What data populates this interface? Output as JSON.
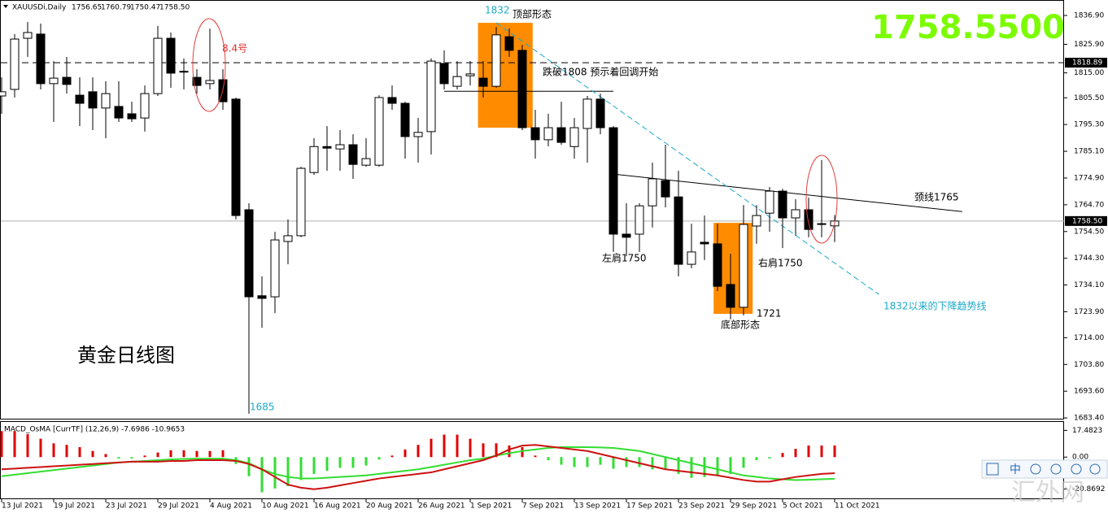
{
  "chart_data": {
    "type": "candlestick",
    "symbol": "XAUUSDi,Daily",
    "header_values": [
      "1756.65",
      "1760.79",
      "1750.47",
      "1758.50"
    ],
    "big_price": "1758.5500",
    "title": "黄金日线图",
    "categories": [
      "13 Jul 2021",
      null,
      null,
      null,
      "19 Jul 2021",
      null,
      null,
      null,
      "23 Jul 2021",
      null,
      null,
      null,
      "29 Jul 2021",
      null,
      null,
      null,
      "4 Aug 2021",
      null,
      null,
      null,
      "10 Aug 2021",
      null,
      null,
      null,
      "16 Aug 2021",
      null,
      null,
      null,
      "20 Aug 2021",
      null,
      null,
      null,
      "26 Aug 2021",
      null,
      null,
      null,
      "1 Sep 2021",
      null,
      null,
      null,
      "7 Sep 2021",
      null,
      null,
      null,
      "13 Sep 2021",
      null,
      null,
      null,
      "17 Sep 2021",
      null,
      null,
      null,
      "23 Sep 2021",
      null,
      null,
      null,
      "29 Sep 2021",
      null,
      null,
      null,
      "5 Oct 2021",
      null,
      null,
      null,
      "11 Oct 2021"
    ],
    "open": [
      1806.2,
      1808.7,
      1828.2,
      1829.8,
      1810.9,
      1813.3,
      1806.5,
      1807.8,
      1801.6,
      1802.2,
      1799.4,
      1797.8,
      1807.1,
      1828.2,
      1815.3,
      1813.3,
      1810.9,
      1812.4,
      1805.0,
      1762.8,
      1730.0,
      1729.6,
      1750.7,
      1752.9,
      1777.0,
      1786.9,
      1786.0,
      1787.6,
      1779.8,
      1779.8,
      1805.6,
      1803.4,
      1790.7,
      1792.6,
      1818.6,
      1809.9,
      1813.9,
      1813.0,
      1809.9,
      1828.8,
      1823.6,
      1794.1,
      1789.5,
      1794.1,
      1786.9,
      1793.8,
      1805.0,
      1794.1,
      1753.5,
      1753.5,
      1764.3,
      1773.9,
      1767.7,
      1742.0,
      1750.4,
      1749.8,
      1734.3,
      1725.6,
      1756.6,
      1761.5,
      1769.9,
      1759.7,
      1762.8,
      1757.2,
      1756.65
    ],
    "high": [
      1813.3,
      1829.8,
      1834.4,
      1833.8,
      1819.5,
      1821.1,
      1813.3,
      1813.3,
      1811.8,
      1811.8,
      1804.0,
      1810.2,
      1832.9,
      1830.4,
      1820.5,
      1816.4,
      1831.9,
      1816.4,
      1805.6,
      1765.3,
      1737.4,
      1754.4,
      1759.1,
      1779.2,
      1790.1,
      1794.7,
      1793.2,
      1791.6,
      1790.1,
      1806.5,
      1810.2,
      1804.0,
      1797.8,
      1820.5,
      1823.6,
      1819.5,
      1819.5,
      1819.5,
      1832.5,
      1831.9,
      1825.7,
      1800.9,
      1799.4,
      1804.0,
      1797.8,
      1806.2,
      1807.1,
      1794.7,
      1765.3,
      1765.3,
      1780.8,
      1787.6,
      1777.7,
      1757.5,
      1760.6,
      1757.5,
      1746.0,
      1764.6,
      1764.6,
      1771.5,
      1770.8,
      1766.8,
      1767.4,
      1781.7,
      1760.79
    ],
    "low": [
      1799.4,
      1805.6,
      1821.1,
      1808.7,
      1796.3,
      1807.1,
      1794.7,
      1793.2,
      1790.1,
      1796.3,
      1796.3,
      1792.6,
      1806.2,
      1809.3,
      1808.7,
      1807.1,
      1808.7,
      1800.9,
      1759.1,
      1685.0,
      1717.8,
      1723.4,
      1742.0,
      1752.3,
      1776.1,
      1777.7,
      1777.7,
      1774.6,
      1779.2,
      1779.2,
      1800.9,
      1782.3,
      1780.8,
      1783.9,
      1808.7,
      1808.7,
      1810.2,
      1805.6,
      1809.3,
      1821.1,
      1793.2,
      1782.3,
      1787.0,
      1787.6,
      1782.3,
      1780.8,
      1791.6,
      1746.7,
      1745.1,
      1746.7,
      1756.0,
      1763.7,
      1737.4,
      1740.5,
      1743.6,
      1731.8,
      1721.0,
      1722.5,
      1749.8,
      1754.4,
      1748.2,
      1752.9,
      1752.3,
      1752.3,
      1750.47
    ],
    "close": [
      1807.8,
      1827.9,
      1830.4,
      1810.9,
      1813.0,
      1810.6,
      1803.4,
      1801.6,
      1807.1,
      1797.8,
      1797.5,
      1807.1,
      1828.2,
      1814.9,
      1815.6,
      1810.2,
      1812.1,
      1804.0,
      1760.6,
      1729.6,
      1729.0,
      1751.3,
      1752.9,
      1778.6,
      1786.9,
      1786.3,
      1787.6,
      1780.1,
      1782.3,
      1805.6,
      1803.4,
      1790.7,
      1792.3,
      1819.5,
      1810.9,
      1813.6,
      1814.6,
      1809.9,
      1829.5,
      1823.6,
      1794.1,
      1789.5,
      1794.1,
      1788.5,
      1794.1,
      1805.0,
      1794.1,
      1753.5,
      1752.3,
      1764.3,
      1774.6,
      1767.7,
      1742.0,
      1746.7,
      1749.8,
      1733.6,
      1725.6,
      1757.2,
      1760.6,
      1769.9,
      1759.7,
      1762.8,
      1755.3,
      1757.5,
      1758.5
    ],
    "up_color": "#ffffff",
    "down_color": "#000000",
    "ylim": [
      1682.8,
      1842.8
    ],
    "yticks": [
      {
        "value": 1836.9,
        "label": "1836.90"
      },
      {
        "value": 1825.9,
        "label": "1825.90"
      },
      {
        "value": 1815.0,
        "label": "1815.00"
      },
      {
        "value": 1805.5,
        "label": "1805.50"
      },
      {
        "value": 1795.3,
        "label": "1795.30"
      },
      {
        "value": 1785.1,
        "label": "1785.10"
      },
      {
        "value": 1774.9,
        "label": "1774.90"
      },
      {
        "value": 1764.7,
        "label": "1764.70"
      },
      {
        "value": 1754.5,
        "label": "1754.50"
      },
      {
        "value": 1744.3,
        "label": "1744.30"
      },
      {
        "value": 1734.1,
        "label": "1734.10"
      },
      {
        "value": 1723.9,
        "label": "1723.90"
      },
      {
        "value": 1714.0,
        "label": "1714.00"
      },
      {
        "value": 1703.8,
        "label": "1703.80"
      },
      {
        "value": 1693.6,
        "label": "1693.60"
      },
      {
        "value": 1683.4,
        "label": "1683.40"
      }
    ],
    "resistance": {
      "value": 1818.89,
      "label": "1818.89"
    },
    "last_price": {
      "value": 1758.5,
      "label": "1758.50"
    },
    "zones": [
      {
        "from": 36.6,
        "to": 40.8,
        "top": 1834.1,
        "bottom": 1794.1,
        "color": "#ff8c00"
      },
      {
        "from": 54.7,
        "to": 57.7,
        "top": 1757.8,
        "bottom": 1723.1,
        "color": "#ff8c00"
      }
    ],
    "lines": [
      {
        "from": 47,
        "to": 73.8,
        "start": 1776.4,
        "end": 1762.1,
        "color": "#000000"
      },
      {
        "from": 34,
        "to": 47,
        "start": 1808,
        "end": 1808,
        "color": "#000000"
      },
      {
        "from": 38,
        "to": 67.4,
        "start": 1834.1,
        "end": 1730.5,
        "color": "#1aa9c9",
        "dashed": true
      }
    ],
    "annotations": [
      "8.4号",
      "1832",
      "顶部形态",
      "跌破1808 预示着回调开始",
      "颈线1765",
      "左肩1750",
      "右肩1750",
      "1721",
      "底部形态",
      "1832以来的下降趋势线",
      "1685"
    ],
    "macd": {
      "label": "MACD_OsMA [CurrTF] (12,26,9) -7.6986 -10.9653",
      "ylim": [
        -27,
        23
      ],
      "yticks": [
        17.4823,
        {
          "value": 0,
          "label": "0.00"
        },
        -20.8692
      ],
      "histogram": {
        "values": [
          17,
          17,
          15,
          12,
          9,
          8,
          6.5,
          4,
          2,
          -1,
          -1,
          1,
          3,
          4.5,
          4.5,
          4,
          4,
          4.5,
          -4.5,
          -12.5,
          -23,
          -20.5,
          -19,
          -15,
          -11,
          -9,
          -7,
          -7,
          -5.5,
          -1.6,
          1,
          5,
          8,
          12,
          14.7,
          14.7,
          12,
          9,
          9,
          7.6,
          6.5,
          1,
          -2,
          -5,
          -6.5,
          -6.5,
          -5,
          -7.6,
          -6.5,
          -6.5,
          -8,
          -8,
          -11,
          -13.6,
          -13,
          -12,
          -11,
          -7,
          -2,
          -1,
          2.7,
          5.4,
          7.6,
          7.6,
          7.6
        ],
        "pos_color": "#e00000",
        "neg_color": "#33dd33"
      },
      "series": [
        {
          "color": "#33dd33",
          "values": [
            -12.5,
            -11.5,
            -10.5,
            -9.5,
            -8.5,
            -7.5,
            -6.5,
            -5.5,
            -4.5,
            -3.5,
            -3,
            -2.5,
            -2,
            -1.5,
            -1.2,
            -1,
            -1,
            -1,
            -2,
            -4,
            -8,
            -11,
            -13,
            -14,
            -14,
            -13.5,
            -13,
            -12.5,
            -12,
            -11,
            -10,
            -9,
            -8,
            -6.5,
            -5,
            -3.5,
            -2,
            -1,
            1,
            2.5,
            4,
            5,
            6,
            6.5,
            6.5,
            6.5,
            6.3,
            6,
            5,
            4,
            2,
            0,
            -2,
            -4,
            -6,
            -8,
            -10,
            -12,
            -13,
            -14,
            -14.5,
            -15,
            -14.8,
            -14.5,
            -14.2
          ]
        },
        {
          "color": "#cc1111",
          "values": [
            -8,
            -7.5,
            -7,
            -6.5,
            -6,
            -5.5,
            -5,
            -4.5,
            -4,
            -3.5,
            -3,
            -3,
            -3,
            -2.5,
            -2.5,
            -2,
            -2,
            -2,
            -2.5,
            -4.5,
            -8,
            -13,
            -18,
            -20,
            -21,
            -20,
            -18.5,
            -17,
            -15.5,
            -14,
            -13,
            -12,
            -11,
            -10,
            -8,
            -6,
            -4,
            -2,
            1,
            5,
            7.5,
            8,
            7,
            6,
            5,
            4,
            2,
            0,
            -2,
            -4,
            -6,
            -8,
            -9,
            -10,
            -11,
            -12,
            -13.5,
            -15,
            -16,
            -16,
            -14.5,
            -13,
            -12,
            -11,
            -10.5
          ]
        }
      ]
    },
    "toolbar_label": "中",
    "watermark": "汇外网"
  }
}
